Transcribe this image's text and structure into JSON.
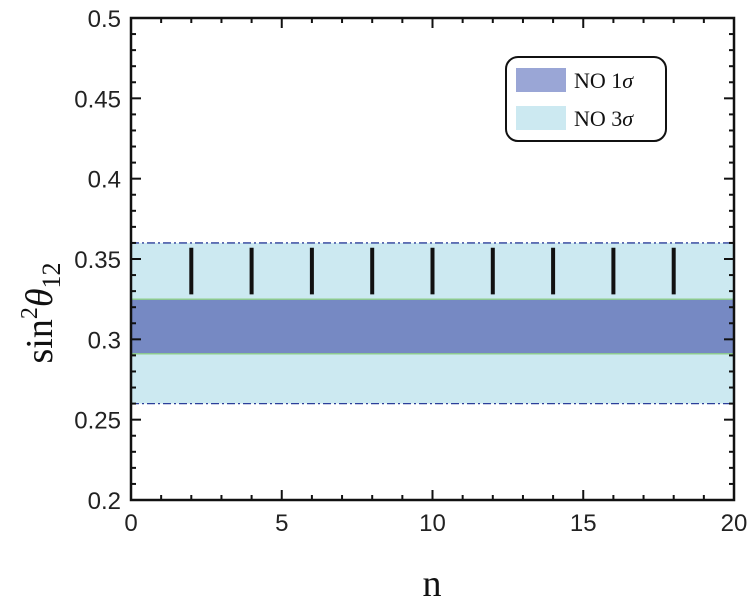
{
  "chart_data": {
    "type": "scatter",
    "title": "",
    "xlabel": "n",
    "ylabel": {
      "base": "sin",
      "sup": "2",
      "sym": "θ",
      "sub": "12"
    },
    "xlim": [
      0,
      20
    ],
    "ylim": [
      0.2,
      0.5
    ],
    "x_ticks": [
      0,
      5,
      10,
      15,
      20
    ],
    "y_ticks": [
      "0.2",
      "0.25",
      "0.3",
      "0.35",
      "0.4",
      "0.45",
      "0.5"
    ],
    "grid": false,
    "legend_position": "top-right",
    "bands": [
      {
        "name": "NO 3σ",
        "range": [
          0.26,
          0.36
        ],
        "color": "#cce9f1",
        "edge_color": "#2b3f9a",
        "edge_style": "dashdot"
      },
      {
        "name": "NO 1σ",
        "range": [
          0.291,
          0.325
        ],
        "color": "#7689c3",
        "edge_color": "#8fd08a",
        "edge_style": "solid"
      }
    ],
    "legend": [
      {
        "label_text": "NO 1",
        "label_sym": "σ",
        "color": "#9aa6d6"
      },
      {
        "label_text": "NO 3",
        "label_sym": "σ",
        "color": "#cce9f1"
      }
    ],
    "series": [
      {
        "marker": "vertical-segment",
        "color": "#111111",
        "x": [
          2,
          4,
          6,
          8,
          10,
          12,
          14,
          16,
          18
        ],
        "y_low": [
          0.328,
          0.328,
          0.328,
          0.328,
          0.328,
          0.328,
          0.328,
          0.328,
          0.328
        ],
        "y_high": [
          0.357,
          0.357,
          0.357,
          0.357,
          0.357,
          0.357,
          0.357,
          0.357,
          0.357
        ]
      }
    ]
  }
}
